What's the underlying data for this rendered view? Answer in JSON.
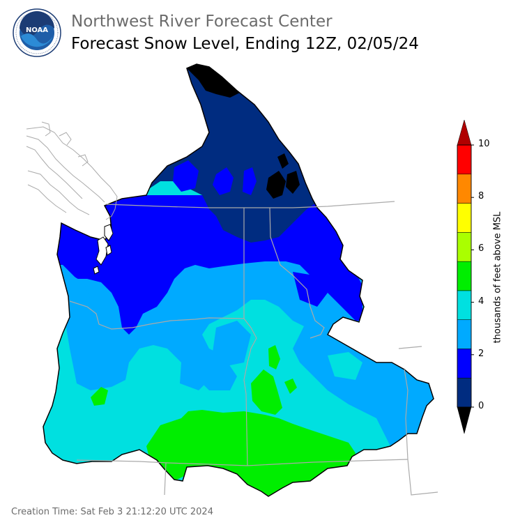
{
  "header": {
    "subtitle": "Northwest River Forecast Center",
    "title": "Forecast Snow Level, Ending 12Z, 02/05/24"
  },
  "logo": {
    "icon": "noaa-logo-icon",
    "text": "NOAA",
    "ring_text": "NATIONAL OCEANIC AND ATMOSPHERIC ADMINISTRATION · U.S. DEPARTMENT OF COMMERCE"
  },
  "colorbar": {
    "title": "thousands of feet above MSL",
    "ticks": [
      "0",
      "2",
      "4",
      "6",
      "8",
      "10"
    ],
    "colors": [
      "#000000",
      "#002c80",
      "#0000ff",
      "#00aaff",
      "#00e0e0",
      "#00ee00",
      "#aaff00",
      "#ffff00",
      "#ff8800",
      "#ff0000",
      "#b00000"
    ]
  },
  "map": {
    "colors": {
      "level_0_1": "#000000",
      "level_1_2": "#002c80",
      "level_2_3": "#0000ff",
      "level_3_4": "#00aaff",
      "level_4_5": "#00e0e0",
      "level_5_6": "#00ee00",
      "border": "#aaaaaa"
    }
  },
  "footer": {
    "creation_time": "Creation Time: Sat Feb 3 21:12:20 UTC 2024"
  }
}
